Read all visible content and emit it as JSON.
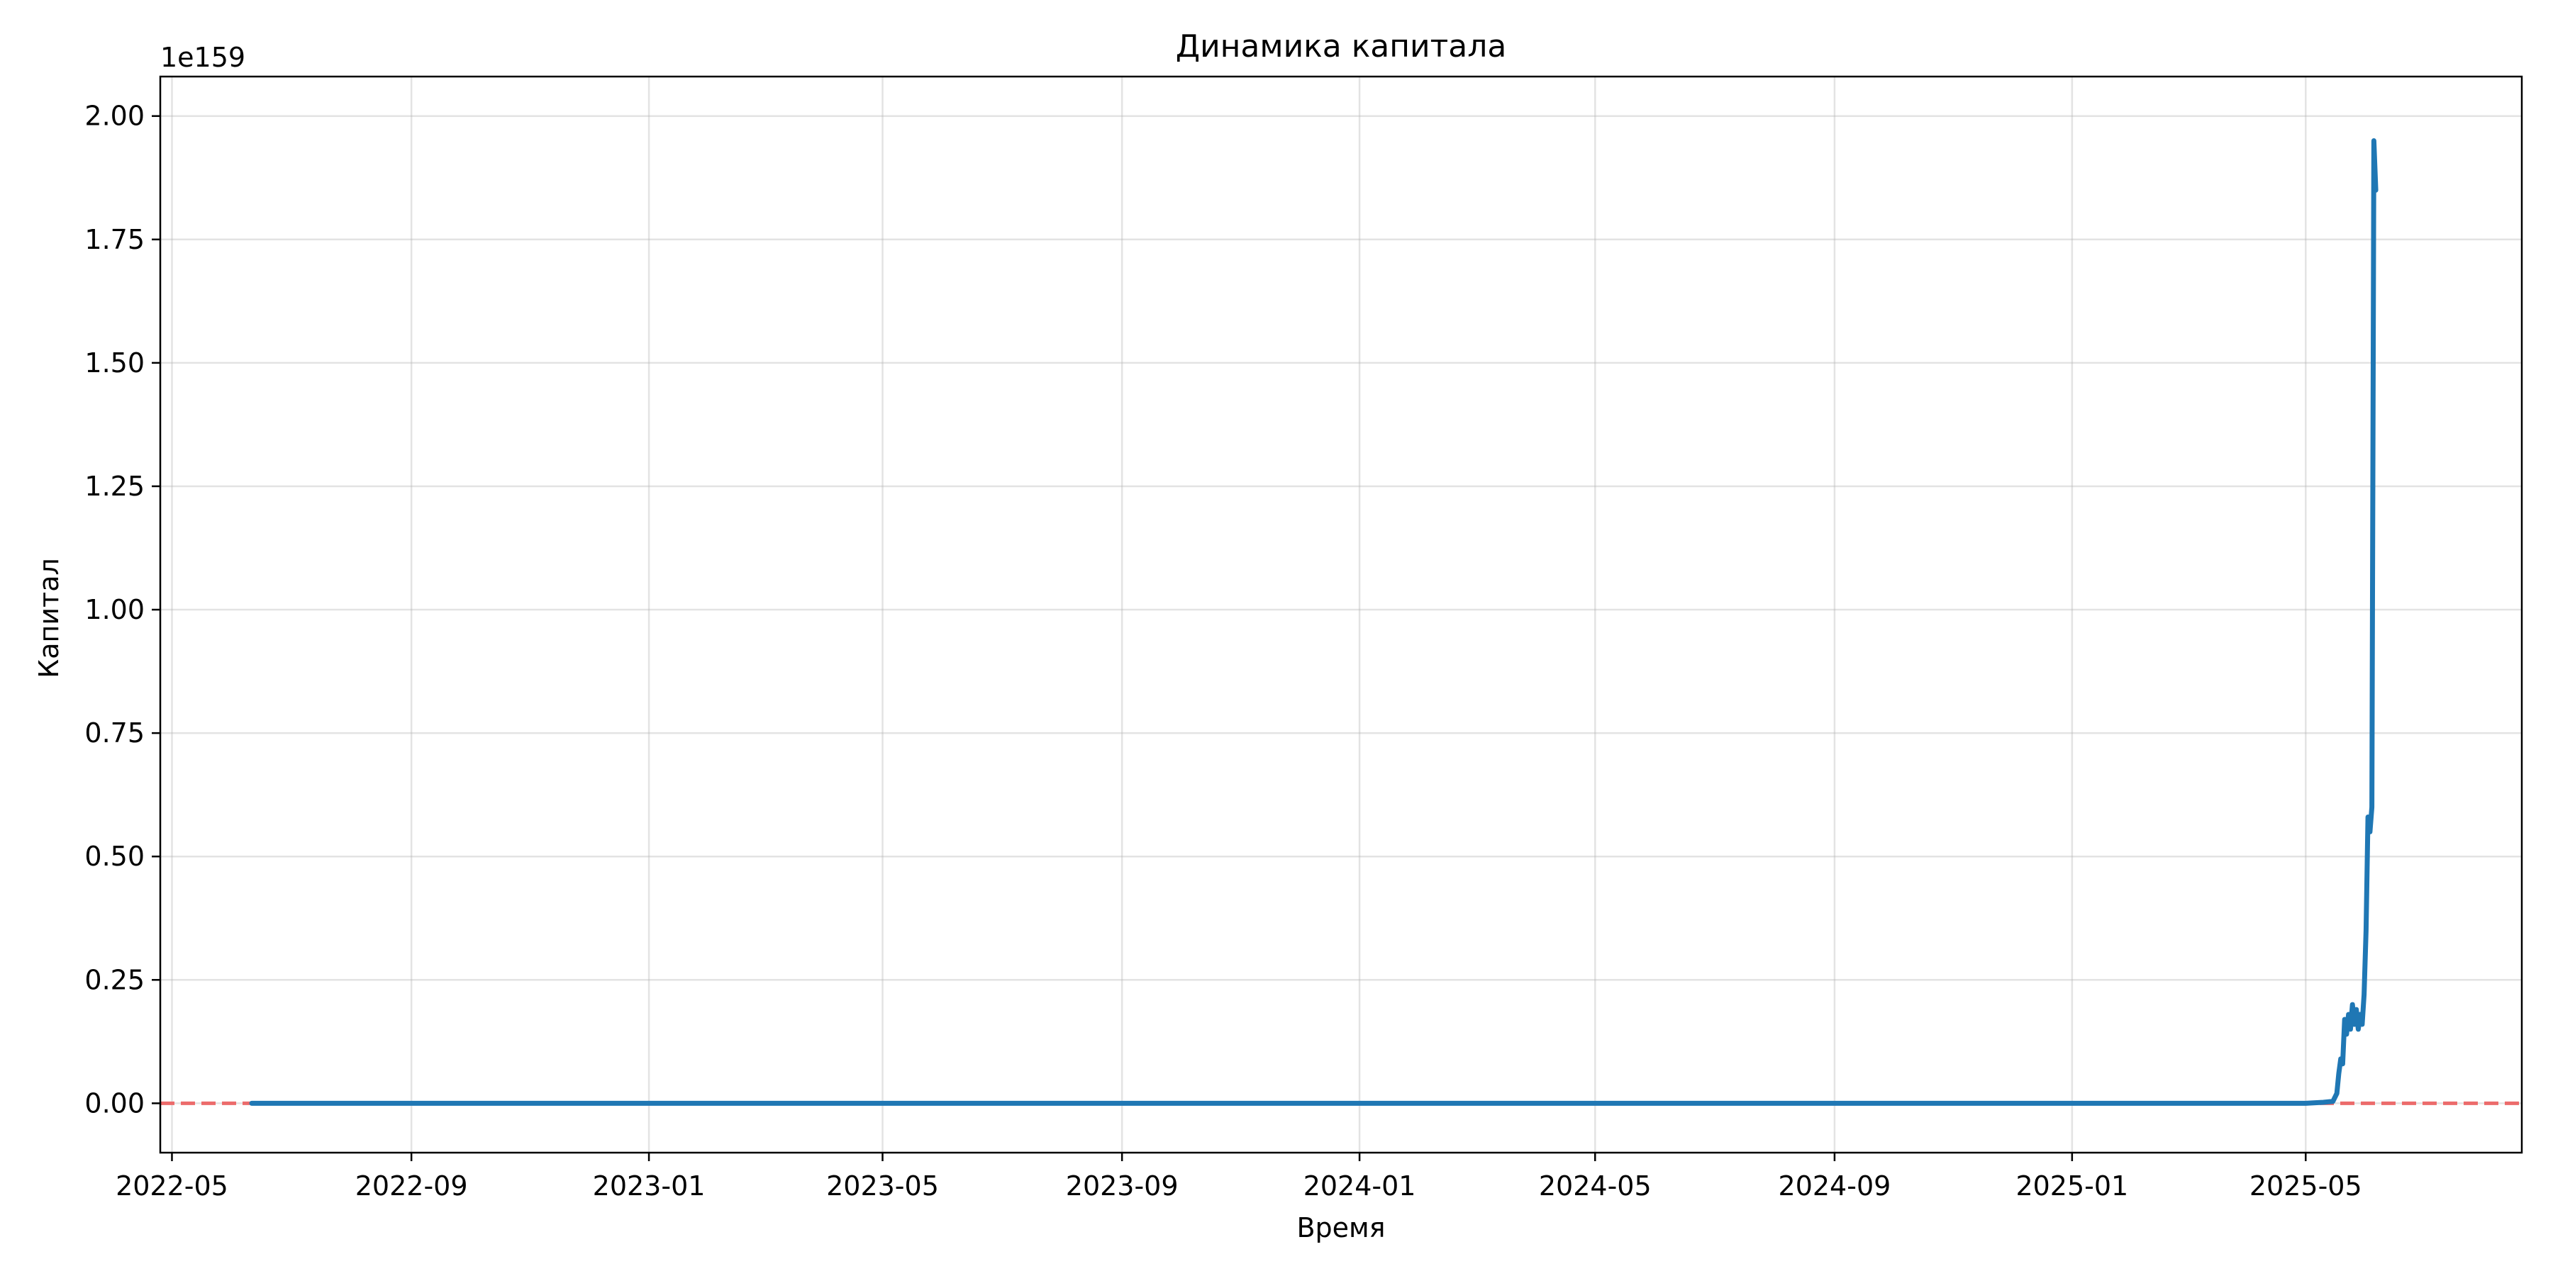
{
  "chart_data": {
    "type": "line",
    "title": "Динамика капитала",
    "xlabel": "Время",
    "ylabel": "Капитал",
    "y_offset_label": "1e159",
    "x_range": [
      "2022-04-25",
      "2025-08-20"
    ],
    "y_range": [
      -0.1,
      2.08
    ],
    "x_ticks": [
      "2022-05",
      "2022-09",
      "2023-01",
      "2023-05",
      "2023-09",
      "2024-01",
      "2024-05",
      "2024-09",
      "2025-01",
      "2025-05"
    ],
    "y_ticks": [
      "0.00",
      "0.25",
      "0.50",
      "0.75",
      "1.00",
      "1.25",
      "1.50",
      "1.75",
      "2.00"
    ],
    "grid": true,
    "reference_line": {
      "y": 0,
      "style": "dashed",
      "color": "#ec6b6b"
    },
    "series": [
      {
        "color": "#1f77b4",
        "points": [
          [
            "2022-06-11",
            0.0
          ],
          [
            "2025-05-01",
            0.0
          ],
          [
            "2025-05-05",
            0.001
          ],
          [
            "2025-05-10",
            0.002
          ],
          [
            "2025-05-15",
            0.004
          ],
          [
            "2025-05-17",
            0.02
          ],
          [
            "2025-05-18",
            0.06
          ],
          [
            "2025-05-19",
            0.09
          ],
          [
            "2025-05-20",
            0.08
          ],
          [
            "2025-05-21",
            0.17
          ],
          [
            "2025-05-22",
            0.14
          ],
          [
            "2025-05-23",
            0.18
          ],
          [
            "2025-05-24",
            0.15
          ],
          [
            "2025-05-25",
            0.2
          ],
          [
            "2025-05-26",
            0.16
          ],
          [
            "2025-05-27",
            0.19
          ],
          [
            "2025-05-28",
            0.15
          ],
          [
            "2025-05-29",
            0.18
          ],
          [
            "2025-05-30",
            0.16
          ],
          [
            "2025-05-31",
            0.22
          ],
          [
            "2025-06-01",
            0.35
          ],
          [
            "2025-06-02",
            0.58
          ],
          [
            "2025-06-03",
            0.55
          ],
          [
            "2025-06-04",
            0.6
          ],
          [
            "2025-06-05",
            1.95
          ],
          [
            "2025-06-06",
            1.85
          ]
        ]
      }
    ]
  }
}
